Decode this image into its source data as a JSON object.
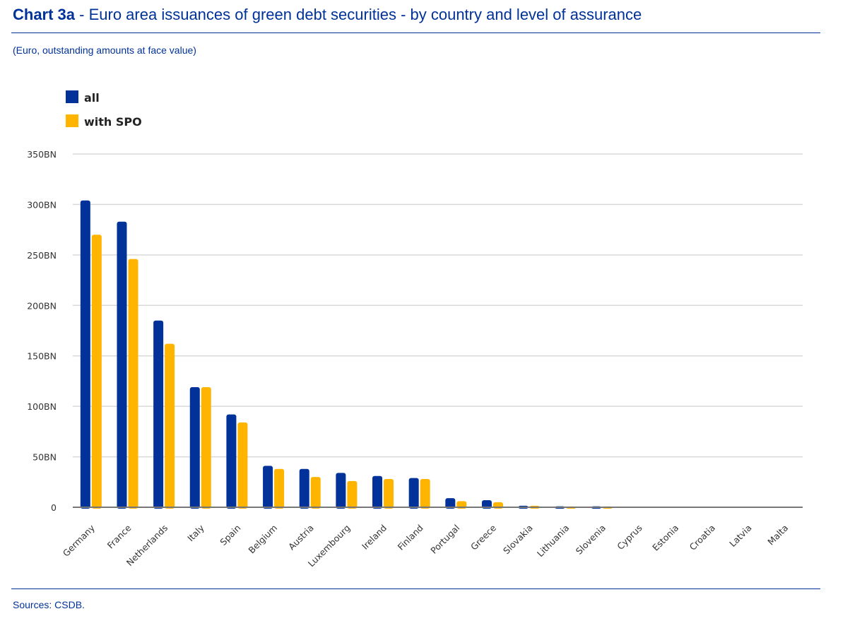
{
  "header": {
    "title_bold": "Chart 3a",
    "title_rest": " - Euro area issuances of green debt securities - by country and level of assurance",
    "subtitle": "(Euro, outstanding amounts at face value)"
  },
  "footer": {
    "sources": "Sources: CSDB."
  },
  "colors": {
    "all": "#003299",
    "with_spo": "#FFB400",
    "title": "#003299"
  },
  "chart_data": {
    "type": "bar",
    "title": "Euro area issuances of green debt securities - by country and level of assurance",
    "ylabel": "",
    "xlabel": "",
    "ylim": [
      0,
      350
    ],
    "yticks": [
      0,
      50,
      100,
      150,
      200,
      250,
      300,
      350
    ],
    "ytick_labels": [
      "0",
      "50BN",
      "100BN",
      "150BN",
      "200BN",
      "250BN",
      "300BN",
      "350BN"
    ],
    "grid": true,
    "legend_position": "top-left",
    "categories": [
      "Germany",
      "France",
      "Netherlands",
      "Italy",
      "Spain",
      "Belgium",
      "Austria",
      "Luxembourg",
      "Ireland",
      "Finland",
      "Portugal",
      "Greece",
      "Slovakia",
      "Lithuania",
      "Slovenia",
      "Cyprus",
      "Estonia",
      "Croatia",
      "Latvia",
      "Malta"
    ],
    "series": [
      {
        "name": "all",
        "values": [
          304,
          283,
          185,
          119,
          92,
          41,
          38,
          34,
          31,
          29,
          9,
          7,
          1.5,
          1,
          1,
          0,
          0,
          0,
          0,
          0
        ]
      },
      {
        "name": "with SPO",
        "values": [
          270,
          246,
          162,
          119,
          84,
          38,
          30,
          26,
          28,
          28,
          6,
          5,
          1.5,
          0.8,
          0.8,
          0,
          0,
          0,
          0,
          0
        ]
      }
    ]
  }
}
